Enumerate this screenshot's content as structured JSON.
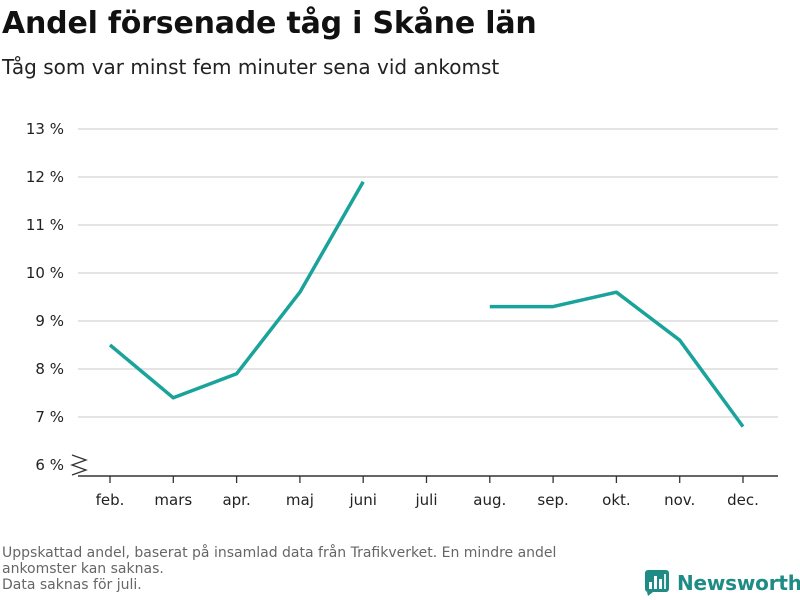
{
  "title": "Andel försenade tåg i Skåne län",
  "subtitle": "Tåg som var minst fem minuter sena vid ankomst",
  "colors": {
    "line": "#1aa39a",
    "grid": "#dcdcdc",
    "axis": "#333333",
    "footnote": "#666666",
    "brand": "#1e8c84"
  },
  "footnote": {
    "line1": "Uppskattad andel, baserat på insamlad data från Trafikverket. En mindre andel",
    "line2": "ankomster kan saknas.",
    "line3": "Data saknas för juli."
  },
  "brand": {
    "name": "Newsworthy",
    "icon": "bar-chart-icon"
  },
  "chart_data": {
    "type": "line",
    "title": "Andel försenade tåg i Skåne län",
    "subtitle": "Tåg som var minst fem minuter sena vid ankomst",
    "categories": [
      "feb.",
      "mars",
      "apr.",
      "maj",
      "juni",
      "juli",
      "aug.",
      "sep.",
      "okt.",
      "nov.",
      "dec."
    ],
    "values": [
      8.5,
      7.4,
      7.9,
      9.6,
      11.9,
      null,
      9.3,
      9.3,
      9.6,
      8.6,
      6.8
    ],
    "ylim": [
      6,
      13
    ],
    "yticks": [
      6,
      7,
      8,
      9,
      10,
      11,
      12,
      13
    ],
    "ytick_labels": [
      "6 %",
      "7 %",
      "8 %",
      "9 %",
      "10 %",
      "11 %",
      "12 %",
      "13 %"
    ],
    "axis_break": true,
    "grid": true,
    "legend": "none"
  }
}
